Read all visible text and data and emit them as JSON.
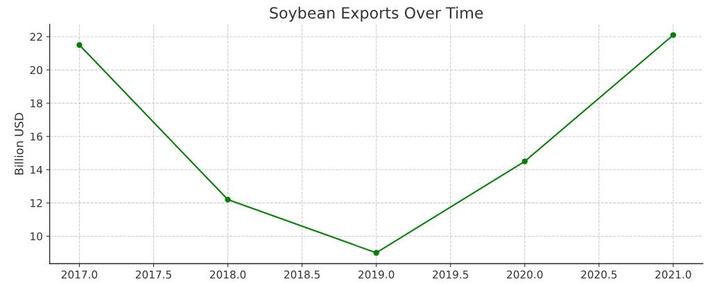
{
  "chart_data": {
    "type": "line",
    "title": "Soybean Exports Over Time",
    "ylabel": "Billion USD",
    "x": [
      2017,
      2018,
      2019,
      2020,
      2021
    ],
    "series": [
      {
        "color": "#008000",
        "values": [
          21.5,
          12.2,
          9.0,
          14.5,
          22.1
        ]
      }
    ],
    "xlim": [
      2016.8,
      2021.2
    ],
    "ylim": [
      8.35,
      22.75
    ],
    "xticks": [
      {
        "value": 2017,
        "label": "2017.0"
      },
      {
        "value": 2017.5,
        "label": "2017.5"
      },
      {
        "value": 2018,
        "label": "2018.0"
      },
      {
        "value": 2018.5,
        "label": "2018.5"
      },
      {
        "value": 2019,
        "label": "2019.0"
      },
      {
        "value": 2019.5,
        "label": "2019.5"
      },
      {
        "value": 2020,
        "label": "2020.0"
      },
      {
        "value": 2020.5,
        "label": "2020.5"
      },
      {
        "value": 2021,
        "label": "2021.0"
      }
    ],
    "yticks": [
      10,
      12,
      14,
      16,
      18,
      20,
      22
    ],
    "grid": true,
    "marker": "circle",
    "line_style": "solid"
  }
}
